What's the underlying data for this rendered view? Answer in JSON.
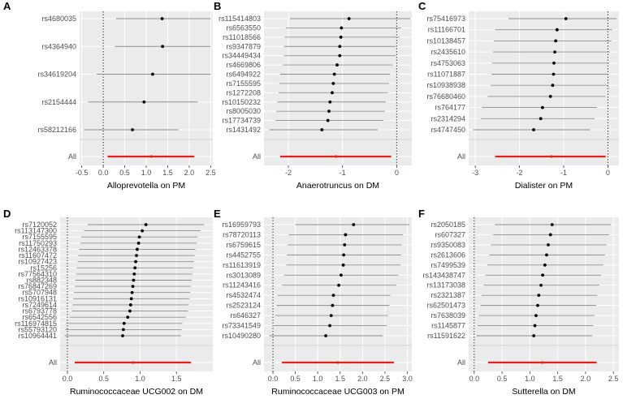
{
  "colors": {
    "panel_bg": "#ebebeb",
    "grid": "#ffffff",
    "ci_line": "#8c8c8c",
    "point": "#000000",
    "summary": "#e8201c",
    "sep": "#d6d6d6",
    "zero_line": "#1a1a1a"
  },
  "chart_data": [
    {
      "type": "forest",
      "letter": "A",
      "title": "",
      "xlabel": "Alloprevotella on PM",
      "xlim": [
        -0.55,
        2.55
      ],
      "xticks": [
        -0.5,
        0.0,
        0.5,
        1.0,
        1.5,
        2.0,
        2.5
      ],
      "xtick_labels": [
        "-0.5",
        "0.0",
        "0.5",
        "1.0",
        "1.5",
        "2.0",
        "2.5"
      ],
      "snps": [
        {
          "id": "rs4680035",
          "est": 1.37,
          "lo": 0.3,
          "hi": 2.5
        },
        {
          "id": "rs4364940",
          "est": 1.38,
          "lo": 0.27,
          "hi": 2.5
        },
        {
          "id": "rs34619204",
          "est": 1.15,
          "lo": -0.15,
          "hi": 2.5
        },
        {
          "id": "rs2154444",
          "est": 0.95,
          "lo": -0.35,
          "hi": 2.2
        },
        {
          "id": "rs58212166",
          "est": 0.68,
          "lo": -0.45,
          "hi": 1.75
        }
      ],
      "summary": {
        "label": "All",
        "est": 1.12,
        "lo": 0.1,
        "hi": 2.12
      }
    },
    {
      "type": "forest",
      "letter": "B",
      "title": "",
      "xlabel": "Anaerotruncus on DM",
      "xlim": [
        -2.45,
        0.28
      ],
      "xticks": [
        -2,
        -1,
        0
      ],
      "xtick_labels": [
        "-2",
        "-1",
        "0"
      ],
      "snps": [
        {
          "id": "rs115414803",
          "est": -0.88,
          "lo": -1.97,
          "hi": 0.25
        },
        {
          "id": "rs6563550",
          "est": -1.02,
          "lo": -2.05,
          "hi": 0.08
        },
        {
          "id": "rs11018566",
          "est": -1.03,
          "lo": -2.07,
          "hi": 0.05
        },
        {
          "id": "rs9347879",
          "est": -1.05,
          "lo": -2.08,
          "hi": -0.02
        },
        {
          "id": "rs34449434",
          "est": -1.05,
          "lo": -2.08,
          "hi": -0.02
        },
        {
          "id": "rs4669806",
          "est": -1.1,
          "lo": -2.1,
          "hi": -0.07
        },
        {
          "id": "rs6494922",
          "est": -1.15,
          "lo": -2.15,
          "hi": -0.12
        },
        {
          "id": "rs7155595",
          "est": -1.17,
          "lo": -2.17,
          "hi": -0.14
        },
        {
          "id": "rs1272208",
          "est": -1.19,
          "lo": -2.18,
          "hi": -0.16
        },
        {
          "id": "rs10150232",
          "est": -1.23,
          "lo": -2.2,
          "hi": -0.2
        },
        {
          "id": "rs8005030",
          "est": -1.25,
          "lo": -2.22,
          "hi": -0.22
        },
        {
          "id": "rs17734739",
          "est": -1.27,
          "lo": -2.24,
          "hi": -0.24
        },
        {
          "id": "rs1431492",
          "est": -1.38,
          "lo": -2.35,
          "hi": -0.35
        }
      ],
      "summary": {
        "label": "All",
        "est": -1.12,
        "lo": -2.15,
        "hi": -0.1
      }
    },
    {
      "type": "forest",
      "letter": "C",
      "title": "",
      "xlabel": "Dialister on PM",
      "xlim": [
        -3.15,
        0.25
      ],
      "xticks": [
        -3,
        -2,
        -1,
        0
      ],
      "xtick_labels": [
        "-3",
        "-2",
        "-1",
        "0"
      ],
      "snps": [
        {
          "id": "rs75416973",
          "est": -0.95,
          "lo": -2.25,
          "hi": 0.2
        },
        {
          "id": "rs11166701",
          "est": -1.15,
          "lo": -2.55,
          "hi": 0.1
        },
        {
          "id": "rs10138457",
          "est": -1.18,
          "lo": -2.58,
          "hi": 0.08
        },
        {
          "id": "rs2435610",
          "est": -1.2,
          "lo": -2.6,
          "hi": 0.05
        },
        {
          "id": "rs4753063",
          "est": -1.22,
          "lo": -2.62,
          "hi": 0.03
        },
        {
          "id": "rs11071887",
          "est": -1.23,
          "lo": -2.63,
          "hi": 0.02
        },
        {
          "id": "rs10938938",
          "est": -1.25,
          "lo": -2.65,
          "hi": 0.0
        },
        {
          "id": "rs76680460",
          "est": -1.3,
          "lo": -2.72,
          "hi": -0.05
        },
        {
          "id": "rs764177",
          "est": -1.48,
          "lo": -2.85,
          "hi": -0.25
        },
        {
          "id": "rs2314294",
          "est": -1.52,
          "lo": -2.88,
          "hi": -0.3
        },
        {
          "id": "rs4747450",
          "est": -1.68,
          "lo": -3.05,
          "hi": -0.4
        }
      ],
      "summary": {
        "label": "All",
        "est": -1.28,
        "lo": -2.55,
        "hi": -0.05
      }
    },
    {
      "type": "forest",
      "letter": "D",
      "title": "",
      "xlabel": "Ruminococcaceae UCG002 on DM",
      "xlim": [
        -0.1,
        2.0
      ],
      "xticks": [
        0.0,
        0.5,
        1.0,
        1.5
      ],
      "xtick_labels": [
        "0.0",
        "0.5",
        "1.0",
        "1.5"
      ],
      "snps": [
        {
          "id": "rs7120052",
          "est": 1.08,
          "lo": 0.28,
          "hi": 1.88
        },
        {
          "id": "rs113147300",
          "est": 1.03,
          "lo": 0.23,
          "hi": 1.83
        },
        {
          "id": "rs7155595",
          "est": 0.99,
          "lo": 0.19,
          "hi": 1.79
        },
        {
          "id": "rs11750293",
          "est": 0.98,
          "lo": 0.18,
          "hi": 1.78
        },
        {
          "id": "rs12463378",
          "est": 0.96,
          "lo": 0.16,
          "hi": 1.76
        },
        {
          "id": "rs11607472",
          "est": 0.95,
          "lo": 0.15,
          "hi": 1.75
        },
        {
          "id": "rs10927423",
          "est": 0.94,
          "lo": 0.14,
          "hi": 1.74
        },
        {
          "id": "rs15256",
          "est": 0.93,
          "lo": 0.13,
          "hi": 1.73
        },
        {
          "id": "rs77564310",
          "est": 0.92,
          "lo": 0.12,
          "hi": 1.72
        },
        {
          "id": "rs882348",
          "est": 0.91,
          "lo": 0.11,
          "hi": 1.71
        },
        {
          "id": "rs76847269",
          "est": 0.9,
          "lo": 0.1,
          "hi": 1.7
        },
        {
          "id": "rs5707948",
          "est": 0.89,
          "lo": 0.09,
          "hi": 1.69
        },
        {
          "id": "rs10916131",
          "est": 0.88,
          "lo": 0.08,
          "hi": 1.68
        },
        {
          "id": "rs7249614",
          "est": 0.87,
          "lo": 0.07,
          "hi": 1.67
        },
        {
          "id": "rs6793778",
          "est": 0.86,
          "lo": 0.06,
          "hi": 1.66
        },
        {
          "id": "rs6542556",
          "est": 0.83,
          "lo": 0.03,
          "hi": 1.63
        },
        {
          "id": "rs116974815",
          "est": 0.78,
          "lo": -0.02,
          "hi": 1.58
        },
        {
          "id": "rs55793120",
          "est": 0.77,
          "lo": -0.03,
          "hi": 1.57
        },
        {
          "id": "rs10964441",
          "est": 0.76,
          "lo": -0.04,
          "hi": 1.56
        }
      ],
      "summary": {
        "label": "All",
        "est": 0.9,
        "lo": 0.1,
        "hi": 1.7
      }
    },
    {
      "type": "forest",
      "letter": "E",
      "title": "",
      "xlabel": "Ruminococcaceae UCG003 on PM",
      "xlim": [
        -0.2,
        3.1
      ],
      "xticks": [
        0.0,
        0.5,
        1.0,
        1.5,
        2.0,
        2.5,
        3.0
      ],
      "xtick_labels": [
        "0.0",
        "0.5",
        "1.0",
        "1.5",
        "2.0",
        "2.5",
        "3.0"
      ],
      "snps": [
        {
          "id": "rs16959793",
          "est": 1.8,
          "lo": 0.5,
          "hi": 3.05
        },
        {
          "id": "rs78720113",
          "est": 1.62,
          "lo": 0.35,
          "hi": 2.9
        },
        {
          "id": "rs6759615",
          "est": 1.6,
          "lo": 0.33,
          "hi": 2.88
        },
        {
          "id": "rs4452755",
          "est": 1.58,
          "lo": 0.31,
          "hi": 2.86
        },
        {
          "id": "rs11613919",
          "est": 1.57,
          "lo": 0.3,
          "hi": 2.85
        },
        {
          "id": "rs3013089",
          "est": 1.52,
          "lo": 0.25,
          "hi": 2.8
        },
        {
          "id": "rs11243416",
          "est": 1.47,
          "lo": 0.2,
          "hi": 2.75
        },
        {
          "id": "rs4532474",
          "est": 1.35,
          "lo": 0.1,
          "hi": 2.62
        },
        {
          "id": "rs2523124",
          "est": 1.33,
          "lo": 0.08,
          "hi": 2.6
        },
        {
          "id": "rs646327",
          "est": 1.3,
          "lo": 0.05,
          "hi": 2.57
        },
        {
          "id": "rs73341549",
          "est": 1.27,
          "lo": 0.02,
          "hi": 2.54
        },
        {
          "id": "rs10490280",
          "est": 1.18,
          "lo": -0.08,
          "hi": 2.45
        }
      ],
      "summary": {
        "label": "All",
        "est": 1.45,
        "lo": 0.2,
        "hi": 2.7
      }
    },
    {
      "type": "forest",
      "letter": "F",
      "title": "",
      "xlabel": "Sutterella on DM",
      "xlim": [
        -0.1,
        2.6
      ],
      "xticks": [
        0.0,
        0.5,
        1.0,
        1.5,
        2.0,
        2.5
      ],
      "xtick_labels": [
        "0.0",
        "0.5",
        "1.0",
        "1.5",
        "2.0",
        "2.5"
      ],
      "snps": [
        {
          "id": "rs2050185",
          "est": 1.4,
          "lo": 0.37,
          "hi": 2.45
        },
        {
          "id": "rs607327",
          "est": 1.37,
          "lo": 0.34,
          "hi": 2.42
        },
        {
          "id": "rs9350083",
          "est": 1.33,
          "lo": 0.3,
          "hi": 2.38
        },
        {
          "id": "rs2613606",
          "est": 1.3,
          "lo": 0.27,
          "hi": 2.35
        },
        {
          "id": "rs7499539",
          "est": 1.27,
          "lo": 0.24,
          "hi": 2.32
        },
        {
          "id": "rs143438747",
          "est": 1.23,
          "lo": 0.2,
          "hi": 2.28
        },
        {
          "id": "rs13173038",
          "est": 1.2,
          "lo": 0.17,
          "hi": 2.25
        },
        {
          "id": "rs2321387",
          "est": 1.16,
          "lo": 0.13,
          "hi": 2.21
        },
        {
          "id": "rs62501473",
          "est": 1.14,
          "lo": 0.11,
          "hi": 2.19
        },
        {
          "id": "rs7638039",
          "est": 1.11,
          "lo": 0.08,
          "hi": 2.16
        },
        {
          "id": "rs1145877",
          "est": 1.09,
          "lo": 0.06,
          "hi": 2.14
        },
        {
          "id": "rs11591622",
          "est": 1.07,
          "lo": 0.04,
          "hi": 2.12
        }
      ],
      "summary": {
        "label": "All",
        "est": 1.22,
        "lo": 0.25,
        "hi": 2.2
      }
    }
  ]
}
